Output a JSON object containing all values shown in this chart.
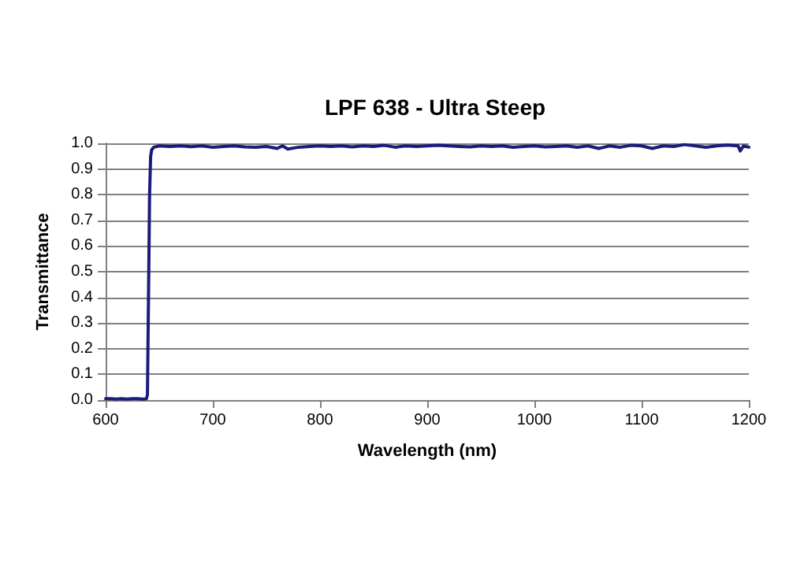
{
  "chart_data": {
    "type": "line",
    "title": "LPF 638 - Ultra Steep",
    "xlabel": "Wavelength (nm)",
    "ylabel": "Transmittance",
    "x": [
      600,
      605,
      610,
      615,
      620,
      625,
      630,
      635,
      638,
      639,
      640,
      641,
      642,
      643,
      645,
      650,
      660,
      670,
      680,
      690,
      700,
      710,
      720,
      730,
      740,
      750,
      760,
      765,
      770,
      780,
      790,
      800,
      810,
      820,
      830,
      840,
      850,
      860,
      870,
      880,
      890,
      900,
      910,
      920,
      930,
      940,
      950,
      960,
      970,
      980,
      990,
      1000,
      1010,
      1020,
      1030,
      1040,
      1050,
      1060,
      1070,
      1080,
      1090,
      1100,
      1110,
      1120,
      1130,
      1140,
      1150,
      1160,
      1170,
      1180,
      1190,
      1192,
      1195,
      1200
    ],
    "series": [
      {
        "color": "#1b1b7e",
        "values": [
          0.005,
          0.005,
          0.004,
          0.005,
          0.004,
          0.005,
          0.005,
          0.004,
          0.005,
          0.02,
          0.4,
          0.8,
          0.95,
          0.975,
          0.985,
          0.99,
          0.988,
          0.99,
          0.987,
          0.99,
          0.985,
          0.988,
          0.99,
          0.986,
          0.985,
          0.988,
          0.98,
          0.99,
          0.978,
          0.985,
          0.988,
          0.99,
          0.988,
          0.99,
          0.986,
          0.99,
          0.988,
          0.992,
          0.985,
          0.99,
          0.988,
          0.99,
          0.992,
          0.99,
          0.988,
          0.986,
          0.99,
          0.988,
          0.99,
          0.985,
          0.988,
          0.99,
          0.986,
          0.988,
          0.99,
          0.985,
          0.99,
          0.98,
          0.99,
          0.985,
          0.992,
          0.99,
          0.98,
          0.99,
          0.988,
          0.995,
          0.99,
          0.985,
          0.99,
          0.993,
          0.99,
          0.97,
          0.99,
          0.985
        ]
      }
    ],
    "xlim": [
      600,
      1200
    ],
    "xticks": [
      600,
      700,
      800,
      900,
      1000,
      1100,
      1200
    ],
    "ylim": [
      0,
      1
    ],
    "yticks": [
      {
        "value": 0,
        "label": "0.0"
      },
      {
        "value": 0.1,
        "label": "0.1"
      },
      {
        "value": 0.2,
        "label": "0.2"
      },
      {
        "value": 0.3,
        "label": "0.3"
      },
      {
        "value": 0.4,
        "label": "0.4"
      },
      {
        "value": 0.5,
        "label": "0.5"
      },
      {
        "value": 0.6,
        "label": "0.6"
      },
      {
        "value": 0.7,
        "label": "0.7"
      },
      {
        "value": 0.8,
        "label": "0.8"
      },
      {
        "value": 0.9,
        "label": "0.9"
      },
      {
        "value": 1,
        "label": "1.0"
      }
    ],
    "grid": "y",
    "marker": "none",
    "line_style": "solid"
  }
}
